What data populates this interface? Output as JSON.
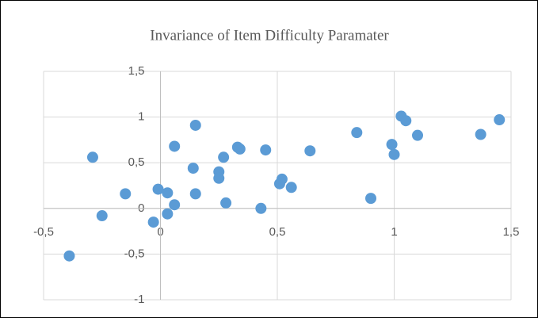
{
  "chart_data": {
    "type": "scatter",
    "title": "Invariance of Item Difficulty Paramater",
    "color": "#5b9bd5",
    "grid": true,
    "xlim": [
      -0.5,
      1.5
    ],
    "xticks": [
      {
        "value": -0.5,
        "label": "-0,5"
      },
      0,
      {
        "value": 0.5,
        "label": "0,5"
      },
      1,
      {
        "value": 1.5,
        "label": "1,5"
      }
    ],
    "ylim": [
      -1,
      1.5
    ],
    "yticks": [
      -1,
      {
        "value": -0.5,
        "label": "-0,5"
      },
      0,
      {
        "value": 0.5,
        "label": "0,5"
      },
      1,
      {
        "value": 1.5,
        "label": "1,5"
      }
    ],
    "x": [
      -0.29,
      -0.39,
      -0.25,
      -0.15,
      -0.03,
      -0.01,
      0.03,
      0.03,
      0.06,
      0.06,
      0.14,
      0.15,
      0.15,
      0.25,
      0.25,
      0.27,
      0.28,
      0.33,
      0.34,
      0.43,
      0.45,
      0.51,
      0.52,
      0.56,
      0.64,
      0.84,
      0.9,
      0.99,
      1.0,
      1.03,
      1.05,
      1.1,
      1.37,
      1.45
    ],
    "values": [
      0.56,
      -0.52,
      -0.08,
      0.16,
      -0.15,
      0.21,
      0.17,
      -0.06,
      0.04,
      0.68,
      0.44,
      0.91,
      0.16,
      0.4,
      0.33,
      0.56,
      0.06,
      0.67,
      0.65,
      0.0,
      0.64,
      0.27,
      0.32,
      0.23,
      0.63,
      0.83,
      0.11,
      0.7,
      0.59,
      1.01,
      0.96,
      0.8,
      0.81,
      0.97
    ]
  }
}
